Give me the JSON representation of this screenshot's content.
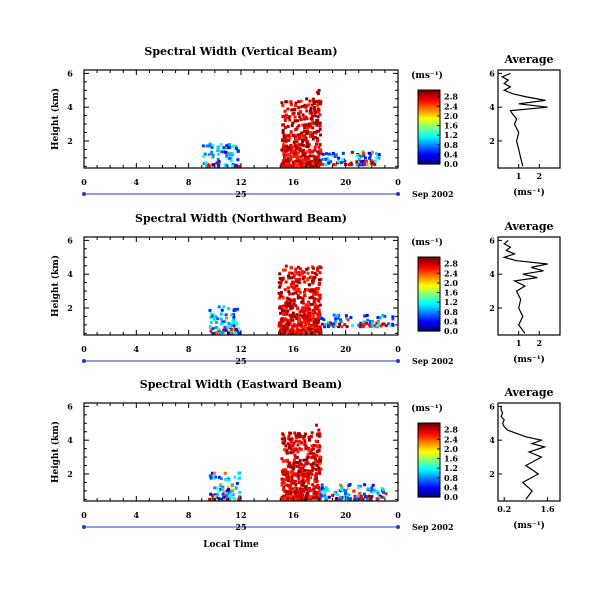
{
  "chart_data": [
    {
      "type": "heatmap",
      "title": "Spectral Width (Vertical Beam)",
      "ylabel": "Height (km)",
      "y_ticks": [
        "2",
        "4",
        "6"
      ],
      "ylim": [
        0.4,
        6.2
      ],
      "x_ticks": [
        "0",
        "4",
        "8",
        "12",
        "16",
        "20",
        "0"
      ],
      "xlim": [
        0,
        24
      ],
      "date_label": "25",
      "month_label": "Sep 2002",
      "colorbar": {
        "unit": "(ms⁻¹)",
        "ticks": [
          "0.0",
          "0.4",
          "0.8",
          "1.2",
          "1.6",
          "2.0",
          "2.4",
          "2.8"
        ]
      },
      "echo_patches": [
        {
          "t": [
            9.0,
            11.8
          ],
          "h": [
            0.4,
            1.8
          ],
          "level": "low-mid, reds above 1.5 km"
        },
        {
          "t": [
            15.0,
            17.6
          ],
          "h": [
            0.4,
            4.4
          ],
          "level": "low with scattered high"
        },
        {
          "t": [
            17.6,
            18.0
          ],
          "h": [
            0.4,
            5.0
          ],
          "level": "high (red column)"
        },
        {
          "t": [
            18.0,
            22.5
          ],
          "h": [
            0.5,
            1.3
          ],
          "level": "low"
        }
      ],
      "average_profile": {
        "title": "Average",
        "xlabel": "(ms⁻¹)",
        "x_ticks": [
          "1",
          "2"
        ],
        "xlim": [
          0,
          3
        ],
        "y_ticks": [
          "2",
          "4",
          "6"
        ],
        "ylim": [
          0.4,
          6.2
        ],
        "height_km": [
          0.5,
          1.0,
          1.5,
          2.0,
          2.5,
          3.0,
          3.3,
          3.6,
          3.8,
          4.0,
          4.2,
          4.4,
          4.6,
          4.8,
          5.0,
          5.2,
          5.4,
          5.6,
          5.8,
          6.0
        ],
        "width_ms": [
          1.2,
          1.1,
          1.0,
          0.9,
          1.0,
          0.8,
          0.9,
          0.7,
          0.6,
          2.4,
          1.0,
          2.3,
          1.4,
          0.7,
          0.3,
          0.6,
          0.3,
          0.5,
          0.2,
          0.6
        ]
      }
    },
    {
      "type": "heatmap",
      "title": "Spectral Width (Northward Beam)",
      "ylabel": "Height (km)",
      "y_ticks": [
        "2",
        "4",
        "6"
      ],
      "ylim": [
        0.4,
        6.2
      ],
      "x_ticks": [
        "0",
        "4",
        "8",
        "12",
        "16",
        "20",
        "0"
      ],
      "xlim": [
        0,
        24
      ],
      "date_label": "25",
      "month_label": "Sep 2002",
      "colorbar": {
        "unit": "(ms⁻¹)",
        "ticks": [
          "0.0",
          "0.4",
          "0.8",
          "1.2",
          "1.6",
          "2.0",
          "2.4",
          "2.8"
        ]
      },
      "echo_patches": [
        {
          "t": [
            9.5,
            11.8
          ],
          "h": [
            0.4,
            2.0
          ],
          "level": "low with red at 1.5 km"
        },
        {
          "t": [
            14.8,
            17.6
          ],
          "h": [
            0.4,
            4.4
          ],
          "level": "low with scattered high"
        },
        {
          "t": [
            17.6,
            18.0
          ],
          "h": [
            0.4,
            4.8
          ],
          "level": "high (red column)"
        },
        {
          "t": [
            18.0,
            23.5
          ],
          "h": [
            0.8,
            1.5
          ],
          "level": "low"
        }
      ],
      "average_profile": {
        "title": "Average",
        "xlabel": "(ms⁻¹)",
        "x_ticks": [
          "1",
          "2"
        ],
        "xlim": [
          0,
          3
        ],
        "y_ticks": [
          "2",
          "4",
          "6"
        ],
        "ylim": [
          0.4,
          6.2
        ],
        "height_km": [
          0.5,
          1.0,
          1.5,
          2.0,
          2.5,
          3.0,
          3.3,
          3.6,
          3.8,
          4.0,
          4.2,
          4.4,
          4.6,
          4.8,
          5.0,
          5.2,
          5.4,
          5.6,
          5.8,
          6.0
        ],
        "width_ms": [
          1.3,
          1.0,
          1.2,
          1.0,
          1.1,
          0.9,
          1.3,
          0.8,
          1.9,
          1.2,
          2.2,
          1.6,
          2.4,
          0.9,
          0.3,
          0.8,
          0.4,
          0.6,
          0.3,
          0.5
        ]
      }
    },
    {
      "type": "heatmap",
      "title": "Spectral Width (Eastward Beam)",
      "ylabel": "Height (km)",
      "y_ticks": [
        "2",
        "4",
        "6"
      ],
      "ylim": [
        0.4,
        6.2
      ],
      "x_ticks": [
        "0",
        "4",
        "8",
        "12",
        "16",
        "20",
        "0"
      ],
      "xlim": [
        0,
        24
      ],
      "date_label": "25",
      "month_label": "Sep 2002",
      "xlabel": "Local Time",
      "colorbar": {
        "unit": "(ms⁻¹)",
        "ticks": [
          "0.0",
          "0.4",
          "0.8",
          "1.2",
          "1.6",
          "2.0",
          "2.4",
          "2.8"
        ]
      },
      "echo_patches": [
        {
          "t": [
            9.5,
            11.8
          ],
          "h": [
            0.4,
            2.0
          ],
          "level": "low-mid"
        },
        {
          "t": [
            15.0,
            17.6
          ],
          "h": [
            0.4,
            4.4
          ],
          "level": "low with scattered high"
        },
        {
          "t": [
            17.6,
            18.0
          ],
          "h": [
            0.4,
            4.8
          ],
          "level": "high (red column)"
        },
        {
          "t": [
            18.0,
            23.0
          ],
          "h": [
            0.4,
            1.3
          ],
          "level": "low"
        }
      ],
      "average_profile": {
        "title": "Average",
        "xlabel": "(ms⁻¹)",
        "x_ticks": [
          "0.2",
          "1.6"
        ],
        "xlim": [
          0,
          2
        ],
        "y_ticks": [
          "2",
          "4",
          "6"
        ],
        "ylim": [
          0.4,
          6.2
        ],
        "height_km": [
          0.5,
          1.0,
          1.5,
          2.0,
          2.5,
          3.0,
          3.3,
          3.6,
          3.8,
          4.0,
          4.2,
          4.4,
          4.6,
          4.8,
          5.0,
          5.2,
          5.4,
          5.6,
          5.8,
          6.0
        ],
        "width_ms": [
          0.9,
          1.1,
          0.8,
          1.3,
          0.9,
          1.4,
          1.0,
          1.5,
          1.1,
          1.4,
          0.9,
          0.6,
          0.3,
          0.2,
          0.15,
          0.2,
          0.1,
          0.15,
          0.1,
          0.1
        ]
      }
    }
  ]
}
